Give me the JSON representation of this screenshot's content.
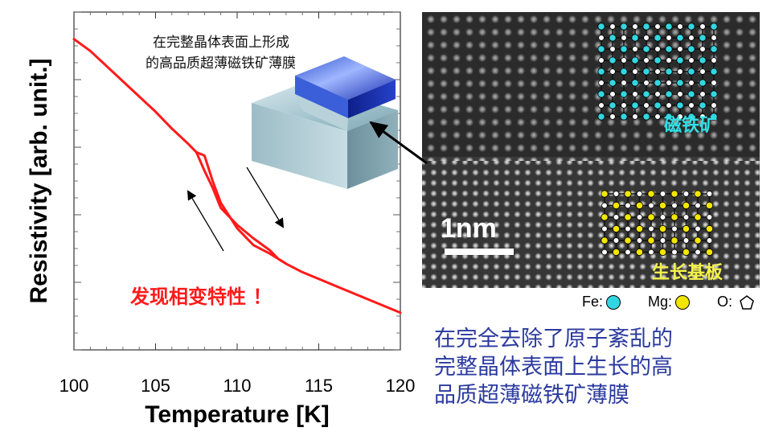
{
  "chart_data": {
    "type": "line",
    "xlabel": "Temperature [K]",
    "ylabel": "Resistivity [arb. unit.]",
    "xlim": [
      100,
      120
    ],
    "x_ticks": [
      "100",
      "105",
      "110",
      "115",
      "120"
    ],
    "y_scale": "arbitrary",
    "series": [
      {
        "x": [
          100,
          101,
          102,
          103,
          104,
          105,
          106,
          107,
          107.5,
          108,
          108.5,
          109,
          110,
          111,
          112,
          112.5,
          113,
          114,
          115,
          116,
          117,
          118,
          119,
          120
        ],
        "y": [
          9.2,
          8.85,
          8.4,
          7.95,
          7.5,
          7.05,
          6.55,
          6.1,
          5.85,
          5.3,
          4.8,
          4.2,
          3.7,
          3.3,
          2.95,
          2.7,
          2.55,
          2.3,
          2.1,
          1.9,
          1.7,
          1.5,
          1.3,
          1.1
        ]
      },
      {
        "x": [
          107.5,
          108,
          108.5,
          109,
          110,
          111,
          112,
          112.5,
          113
        ],
        "y": [
          5.85,
          5.75,
          5.0,
          4.35,
          3.6,
          3.1,
          2.85,
          2.7,
          2.55
        ]
      }
    ],
    "annotations": [
      "发现相变特性 ！"
    ]
  },
  "callout": {
    "line1": "在完整晶体表面上形成",
    "line2": "的高品质超薄磁铁矿薄膜"
  },
  "tem": {
    "top_label": "磁铁矿",
    "bottom_label": "生长基板",
    "scale_bar": "1nm"
  },
  "legend": {
    "fe": "Fe:",
    "mg": "Mg:",
    "o": "O:",
    "fe_color": "#33d6e0",
    "mg_color": "#f2e600"
  },
  "caption": {
    "line1": "在完全去除了原子紊乱的",
    "line2": "完整晶体表面上生长的高",
    "line3": "品质超薄磁铁矿薄膜"
  }
}
